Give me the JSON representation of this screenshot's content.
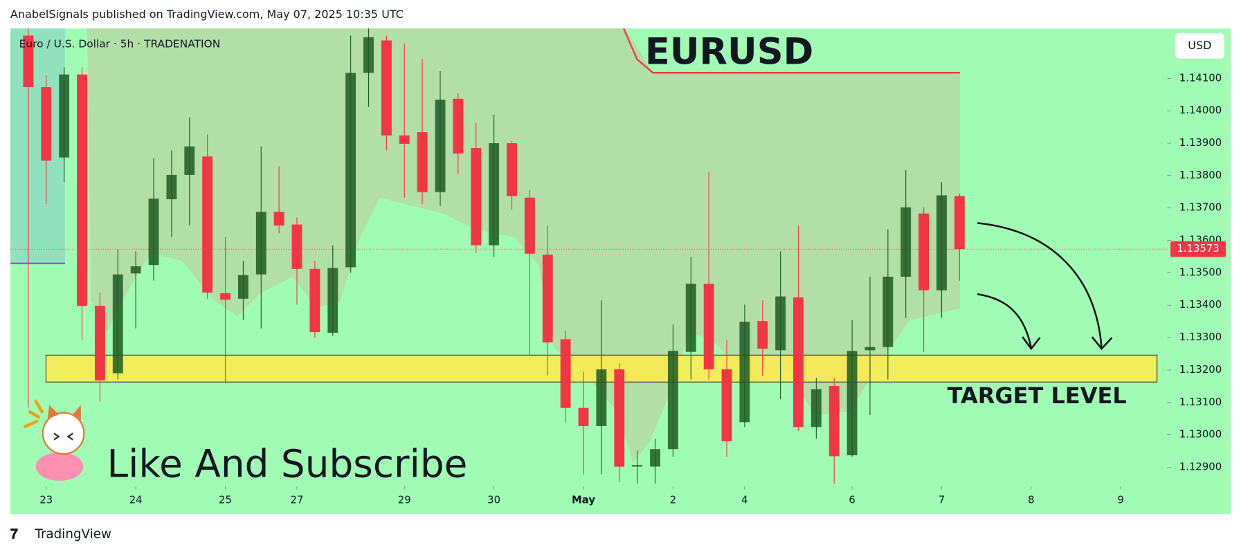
{
  "header": "AnabelSignals published on TradingView.com, May 07, 2025 10:35 UTC",
  "footer": "TradingView",
  "currency_button": "USD",
  "chart_data": {
    "type": "candlestick",
    "symbol_info": "Euro / U.S. Dollar · 5h · TRADENATION",
    "title": "EURUSD",
    "annotation": "Like And Subscribe",
    "up_color": "#1f5a22",
    "down_color": "#f23645",
    "candles": [
      {
        "open": 1.14232,
        "high": 1.14254,
        "low": 1.13085,
        "close": 1.14073
      },
      {
        "open": 1.14073,
        "high": 1.1411,
        "low": 1.13712,
        "close": 1.13846
      },
      {
        "open": 1.13856,
        "high": 1.14134,
        "low": 1.1378,
        "close": 1.14112
      },
      {
        "open": 1.14112,
        "high": 1.14134,
        "low": 1.13293,
        "close": 1.13398
      },
      {
        "open": 1.13398,
        "high": 1.13439,
        "low": 1.13102,
        "close": 1.13168
      },
      {
        "open": 1.1319,
        "high": 1.13573,
        "low": 1.13171,
        "close": 1.13495
      },
      {
        "open": 1.13498,
        "high": 1.13566,
        "low": 1.13329,
        "close": 1.1352
      },
      {
        "open": 1.13524,
        "high": 1.13854,
        "low": 1.13476,
        "close": 1.13729
      },
      {
        "open": 1.13727,
        "high": 1.13878,
        "low": 1.1361,
        "close": 1.13802
      },
      {
        "open": 1.13802,
        "high": 1.1398,
        "low": 1.13646,
        "close": 1.1389
      },
      {
        "open": 1.13859,
        "high": 1.13927,
        "low": 1.1342,
        "close": 1.13439
      },
      {
        "open": 1.13437,
        "high": 1.1361,
        "low": 1.13159,
        "close": 1.13417
      },
      {
        "open": 1.1342,
        "high": 1.13537,
        "low": 1.13354,
        "close": 1.13493
      },
      {
        "open": 1.13495,
        "high": 1.1389,
        "low": 1.13329,
        "close": 1.13688
      },
      {
        "open": 1.13688,
        "high": 1.13829,
        "low": 1.13622,
        "close": 1.13646
      },
      {
        "open": 1.13649,
        "high": 1.13671,
        "low": 1.13402,
        "close": 1.13512
      },
      {
        "open": 1.13512,
        "high": 1.13537,
        "low": 1.13298,
        "close": 1.13317
      },
      {
        "open": 1.13315,
        "high": 1.13585,
        "low": 1.13305,
        "close": 1.13515
      },
      {
        "open": 1.13517,
        "high": 1.14232,
        "low": 1.135,
        "close": 1.14117
      },
      {
        "open": 1.14117,
        "high": 1.14254,
        "low": 1.14012,
        "close": 1.14227
      },
      {
        "open": 1.14217,
        "high": 1.14232,
        "low": 1.13878,
        "close": 1.13924
      },
      {
        "open": 1.13924,
        "high": 1.14207,
        "low": 1.13732,
        "close": 1.13898
      },
      {
        "open": 1.13934,
        "high": 1.14159,
        "low": 1.13712,
        "close": 1.13749
      },
      {
        "open": 1.13749,
        "high": 1.14122,
        "low": 1.13707,
        "close": 1.14034
      },
      {
        "open": 1.14037,
        "high": 1.14054,
        "low": 1.13805,
        "close": 1.13868
      },
      {
        "open": 1.13885,
        "high": 1.13963,
        "low": 1.13561,
        "close": 1.13585
      },
      {
        "open": 1.13585,
        "high": 1.13988,
        "low": 1.13549,
        "close": 1.139
      },
      {
        "open": 1.139,
        "high": 1.13907,
        "low": 1.13695,
        "close": 1.13737
      },
      {
        "open": 1.13732,
        "high": 1.13756,
        "low": 1.13244,
        "close": 1.13559
      },
      {
        "open": 1.13556,
        "high": 1.13646,
        "low": 1.13183,
        "close": 1.13285
      },
      {
        "open": 1.13295,
        "high": 1.13322,
        "low": 1.13037,
        "close": 1.13083
      },
      {
        "open": 1.13083,
        "high": 1.13195,
        "low": 1.12878,
        "close": 1.13027
      },
      {
        "open": 1.13027,
        "high": 1.13415,
        "low": 1.12878,
        "close": 1.13202
      },
      {
        "open": 1.13202,
        "high": 1.1322,
        "low": 1.12854,
        "close": 1.12902
      },
      {
        "open": 1.12902,
        "high": 1.12951,
        "low": 1.12849,
        "close": 1.12907
      },
      {
        "open": 1.12902,
        "high": 1.12988,
        "low": 1.12849,
        "close": 1.12956
      },
      {
        "open": 1.12956,
        "high": 1.13341,
        "low": 1.12932,
        "close": 1.13259
      },
      {
        "open": 1.13256,
        "high": 1.13549,
        "low": 1.13171,
        "close": 1.13466
      },
      {
        "open": 1.13466,
        "high": 1.13812,
        "low": 1.13171,
        "close": 1.13202
      },
      {
        "open": 1.13202,
        "high": 1.13293,
        "low": 1.12932,
        "close": 1.1298
      },
      {
        "open": 1.13039,
        "high": 1.13402,
        "low": 1.13024,
        "close": 1.13349
      },
      {
        "open": 1.13351,
        "high": 1.13415,
        "low": 1.13183,
        "close": 1.13266
      },
      {
        "open": 1.13261,
        "high": 1.13566,
        "low": 1.1311,
        "close": 1.13427
      },
      {
        "open": 1.13424,
        "high": 1.13646,
        "low": 1.13012,
        "close": 1.13024
      },
      {
        "open": 1.13024,
        "high": 1.13176,
        "low": 1.12988,
        "close": 1.13141
      },
      {
        "open": 1.13151,
        "high": 1.13176,
        "low": 1.12849,
        "close": 1.12934
      },
      {
        "open": 1.12937,
        "high": 1.13354,
        "low": 1.12932,
        "close": 1.13259
      },
      {
        "open": 1.13261,
        "high": 1.13488,
        "low": 1.13061,
        "close": 1.13271
      },
      {
        "open": 1.13271,
        "high": 1.13634,
        "low": 1.13171,
        "close": 1.13488
      },
      {
        "open": 1.13488,
        "high": 1.13817,
        "low": 1.13361,
        "close": 1.13702
      },
      {
        "open": 1.13683,
        "high": 1.13702,
        "low": 1.13256,
        "close": 1.13446
      },
      {
        "open": 1.13446,
        "high": 1.1378,
        "low": 1.13361,
        "close": 1.13739
      },
      {
        "open": 1.13737,
        "high": 1.13744,
        "low": 1.13476,
        "close": 1.13573
      }
    ],
    "xlim": [
      -1,
      63.6
    ],
    "xticks": [
      {
        "value": 1,
        "label": "23"
      },
      {
        "value": 6,
        "label": "24"
      },
      {
        "value": 11,
        "label": "25"
      },
      {
        "value": 15,
        "label": "27"
      },
      {
        "value": 21,
        "label": "29"
      },
      {
        "value": 26,
        "label": "30"
      },
      {
        "value": 31,
        "label": "May"
      },
      {
        "value": 36,
        "label": "2"
      },
      {
        "value": 40,
        "label": "4"
      },
      {
        "value": 46,
        "label": "6"
      },
      {
        "value": 51,
        "label": "7"
      },
      {
        "value": 56,
        "label": "8"
      },
      {
        "value": 61,
        "label": "9"
      }
    ],
    "ylim": [
      1.12841,
      1.14254
    ],
    "yticks": [
      {
        "value": 1.129,
        "label": "1.12900"
      },
      {
        "value": 1.13,
        "label": "1.13000"
      },
      {
        "value": 1.131,
        "label": "1.13100"
      },
      {
        "value": 1.132,
        "label": "1.13200"
      },
      {
        "value": 1.133,
        "label": "1.13300"
      },
      {
        "value": 1.134,
        "label": "1.13400"
      },
      {
        "value": 1.135,
        "label": "1.13500"
      },
      {
        "value": 1.136,
        "label": "1.13600"
      },
      {
        "value": 1.137,
        "label": "1.13700"
      },
      {
        "value": 1.138,
        "label": "1.13800"
      },
      {
        "value": 1.139,
        "label": "1.13900"
      },
      {
        "value": 1.14,
        "label": "1.14000"
      },
      {
        "value": 1.141,
        "label": "1.14100"
      }
    ],
    "last_price": 1.13573,
    "zone": {
      "label": "TARGET LEVEL",
      "low": 1.13163,
      "high": 1.13246,
      "color": "#ffeb4d"
    }
  }
}
